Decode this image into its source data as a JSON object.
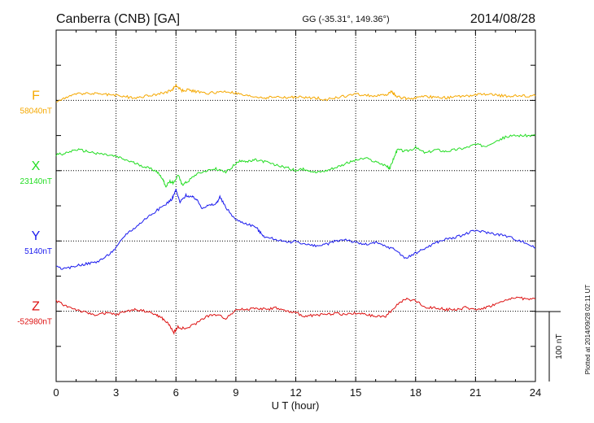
{
  "header": {
    "title": "Canberra (CNB)  [GA]",
    "coords": "GG (-35.31°, 149.36°)",
    "date": "2014/08/28"
  },
  "side_note": "Plotted at 2014/09/28 02:11 UT",
  "scale_bar_label": "100 nT",
  "chart_data": {
    "type": "line",
    "xlabel": "U T (hour)",
    "xlim": [
      0,
      24
    ],
    "xticks": [
      0,
      3,
      6,
      9,
      12,
      15,
      18,
      21,
      24
    ],
    "grid": true,
    "ylabel": "",
    "nt_per_row": 40,
    "series": [
      {
        "name": "F",
        "baseline_label": "58040nT",
        "color": "#f5a800",
        "baseline_row": 0,
        "x": [
          0,
          0.5,
          1,
          1.5,
          2,
          2.5,
          3,
          3.5,
          4,
          4.5,
          5,
          5.5,
          5.8,
          6,
          6.3,
          6.6,
          7,
          7.5,
          8,
          8.5,
          9,
          9.5,
          10,
          10.5,
          11,
          11.5,
          12,
          12.5,
          13,
          13.5,
          14,
          14.5,
          15,
          15.5,
          16,
          16.5,
          16.8,
          17,
          17.3,
          17.6,
          18,
          18.5,
          19,
          19.5,
          20,
          20.5,
          21,
          21.5,
          22,
          22.5,
          23,
          23.5,
          24
        ],
        "values": [
          -2,
          4,
          7,
          8,
          8,
          7,
          6,
          4,
          3,
          5,
          7,
          9,
          12,
          17,
          11,
          12,
          10,
          8,
          9,
          10,
          8,
          5,
          4,
          3,
          4,
          3,
          4,
          3,
          3,
          1,
          3,
          5,
          7,
          6,
          5,
          6,
          10,
          5,
          3,
          2,
          3,
          4,
          4,
          3,
          4,
          5,
          6,
          7,
          6,
          5,
          5,
          5,
          5
        ]
      },
      {
        "name": "X",
        "baseline_label": "23140nT",
        "color": "#22dd22",
        "baseline_row": 2,
        "x": [
          0,
          0.5,
          1,
          1.5,
          2,
          2.5,
          3,
          3.5,
          4,
          4.5,
          5,
          5.3,
          5.5,
          5.7,
          5.9,
          6.1,
          6.3,
          6.6,
          7,
          7.5,
          8,
          8.5,
          9,
          9.3,
          9.6,
          10,
          10.5,
          11,
          11.5,
          12,
          12.5,
          13,
          13.5,
          14,
          14.5,
          15,
          15.5,
          16,
          16.5,
          16.7,
          16.9,
          17.1,
          17.5,
          18,
          18.5,
          19,
          19.5,
          20,
          20.5,
          21,
          21.5,
          22,
          22.5,
          23,
          23.5,
          24
        ],
        "values": [
          18,
          20,
          24,
          22,
          20,
          18,
          16,
          12,
          8,
          4,
          0,
          -8,
          -18,
          -12,
          -14,
          -4,
          -16,
          -12,
          -4,
          0,
          2,
          -2,
          8,
          12,
          10,
          12,
          10,
          6,
          4,
          0,
          2,
          -2,
          0,
          4,
          8,
          12,
          14,
          10,
          6,
          2,
          14,
          24,
          22,
          26,
          20,
          24,
          22,
          24,
          26,
          30,
          28,
          34,
          38,
          40,
          40,
          40
        ]
      },
      {
        "name": "Y",
        "baseline_label": "5140nT",
        "color": "#1a1aee",
        "baseline_row": 4,
        "x": [
          0,
          0.5,
          1,
          1.5,
          2,
          2.5,
          3,
          3.5,
          4,
          4.5,
          5,
          5.5,
          5.8,
          6,
          6.2,
          6.5,
          6.8,
          7,
          7.3,
          7.6,
          8,
          8.2,
          8.5,
          9,
          9.5,
          10,
          10.2,
          10.5,
          11,
          11.5,
          12,
          12.5,
          13,
          13.5,
          14,
          14.5,
          15,
          15.5,
          16,
          16.5,
          17,
          17.5,
          18,
          18.5,
          19,
          19.5,
          20,
          20.5,
          21,
          21.5,
          22,
          22.5,
          23,
          23.5,
          24
        ],
        "values": [
          -30,
          -32,
          -28,
          -26,
          -24,
          -18,
          -8,
          8,
          16,
          26,
          34,
          42,
          48,
          58,
          44,
          52,
          50,
          48,
          38,
          40,
          42,
          50,
          38,
          24,
          20,
          16,
          10,
          4,
          2,
          -2,
          0,
          -4,
          -6,
          -4,
          0,
          2,
          -2,
          -4,
          -2,
          -6,
          -10,
          -20,
          -14,
          -8,
          -2,
          2,
          4,
          8,
          12,
          10,
          8,
          6,
          2,
          -2,
          -8
        ]
      },
      {
        "name": "Z",
        "baseline_label": "-52980nT",
        "color": "#dd1111",
        "baseline_row": 6,
        "x": [
          0,
          0.5,
          1,
          1.5,
          2,
          2.5,
          3,
          3.5,
          4,
          4.5,
          5,
          5.3,
          5.6,
          5.9,
          6.1,
          6.5,
          7,
          7.5,
          8,
          8.5,
          9,
          9.5,
          10,
          10.5,
          11,
          11.5,
          12,
          12.5,
          13,
          13.5,
          14,
          14.5,
          15,
          15.5,
          16,
          16.5,
          17,
          17.5,
          18,
          18.5,
          19,
          19.5,
          20,
          20.5,
          21,
          21.5,
          22,
          22.5,
          23,
          23.5,
          24
        ],
        "values": [
          12,
          6,
          2,
          -2,
          -4,
          -2,
          -4,
          0,
          2,
          0,
          -4,
          -8,
          -14,
          -24,
          -18,
          -20,
          -14,
          -6,
          -4,
          -8,
          2,
          2,
          4,
          2,
          4,
          0,
          -2,
          -6,
          -4,
          -4,
          -2,
          -4,
          -2,
          -4,
          -6,
          -6,
          6,
          14,
          12,
          4,
          4,
          2,
          2,
          4,
          2,
          4,
          8,
          12,
          16,
          14,
          14
        ]
      }
    ]
  }
}
